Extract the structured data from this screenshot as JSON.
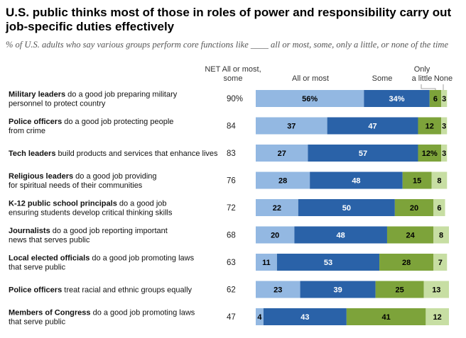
{
  "title": "U.S. public thinks most of those in roles of power and responsibility carry out job-specific duties effectively",
  "subtitle": "% of U.S. adults who say various groups perform core functions like ____ all or most, some, only a little, or none of the time",
  "headers": {
    "net_line1": "NET All or most,",
    "net_line2": "some",
    "all_or_most": "All or most",
    "some": "Some",
    "only_a_little_line1": "Only",
    "only_a_little_line2": "a little",
    "none": "None"
  },
  "colors": {
    "all_or_most": "#93b8e2",
    "some": "#2a62a8",
    "only_a_little": "#7da33a",
    "none": "#c7dea3"
  },
  "chart_data": {
    "type": "bar",
    "stacked": true,
    "orientation": "horizontal",
    "categories": [
      "Military leaders do a good job preparing military personnel to protect country",
      "Police officers do a good job protecting people from crime",
      "Tech leaders build products and services that enhance lives",
      "Religious leaders do a good job providing for spiritual needs of their communities",
      "K-12 public school principals do a good job ensuring students develop critical thinking skills",
      "Journalists do a good job reporting important news that serves public",
      "Local elected officials do a good job promoting laws that serve public",
      "Police officers treat racial and ethnic groups equally",
      "Members of Congress do a good job promoting laws that serve public"
    ],
    "rows": [
      {
        "group": "Military leaders",
        "desc": [
          "do a good job preparing military",
          "personnel to protect country"
        ],
        "net": "90%",
        "values": [
          56,
          34,
          6,
          3
        ],
        "labels": [
          "56%",
          "34%",
          "6",
          "3"
        ]
      },
      {
        "group": "Police officers",
        "desc": [
          "do a good job protecting people",
          "from crime"
        ],
        "net": "84",
        "values": [
          37,
          47,
          12,
          3
        ],
        "labels": [
          "37",
          "47",
          "12",
          "3"
        ]
      },
      {
        "group": "Tech leaders",
        "desc": [
          "build products and services that enhance lives"
        ],
        "net": "83",
        "values": [
          27,
          57,
          12,
          3
        ],
        "labels": [
          "27",
          "57",
          "12%",
          "3"
        ]
      },
      {
        "group": "Religious leaders",
        "desc": [
          "do a good job providing",
          "for spiritual needs of their communities"
        ],
        "net": "76",
        "values": [
          28,
          48,
          15,
          8
        ],
        "labels": [
          "28",
          "48",
          "15",
          "8"
        ]
      },
      {
        "group": "K-12 public school principals",
        "desc": [
          "do a good job",
          "ensuring students develop critical thinking skills"
        ],
        "net": "72",
        "values": [
          22,
          50,
          20,
          6
        ],
        "labels": [
          "22",
          "50",
          "20",
          "6"
        ]
      },
      {
        "group": "Journalists",
        "desc": [
          "do a good job reporting important",
          "news that serves public"
        ],
        "net": "68",
        "values": [
          20,
          48,
          24,
          8
        ],
        "labels": [
          "20",
          "48",
          "24",
          "8"
        ]
      },
      {
        "group": "Local elected officials",
        "desc": [
          "do a good job promoting laws",
          "that serve public"
        ],
        "net": "63",
        "values": [
          11,
          53,
          28,
          7
        ],
        "labels": [
          "11",
          "53",
          "28",
          "7"
        ]
      },
      {
        "group": "Police officers",
        "desc": [
          "treat racial and ethnic groups equally"
        ],
        "net": "62",
        "values": [
          23,
          39,
          25,
          13
        ],
        "labels": [
          "23",
          "39",
          "25",
          "13"
        ]
      },
      {
        "group": "Members of Congress",
        "desc": [
          "do a good job promoting laws",
          "that serve public"
        ],
        "net": "47",
        "values": [
          4,
          43,
          41,
          12
        ],
        "labels": [
          "4",
          "43",
          "41",
          "12"
        ]
      }
    ],
    "series": [
      {
        "name": "All or most"
      },
      {
        "name": "Some"
      },
      {
        "name": "Only a little"
      },
      {
        "name": "None"
      }
    ],
    "xlim": [
      0,
      100
    ],
    "grid": false
  }
}
